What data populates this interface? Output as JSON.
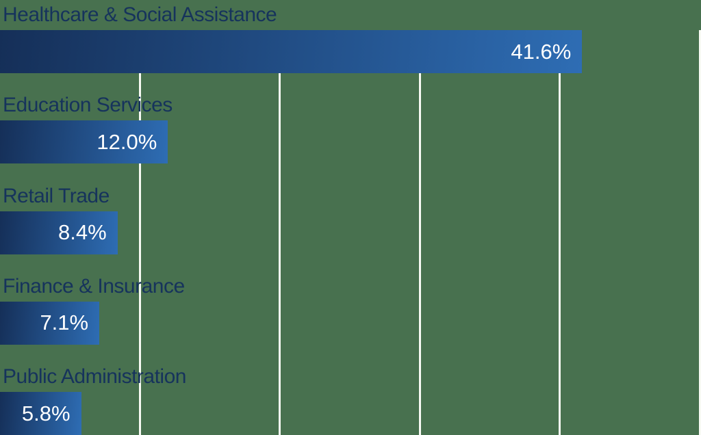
{
  "chart_data": {
    "type": "bar",
    "orientation": "horizontal",
    "title": "",
    "xlabel": "",
    "ylabel": "",
    "categories": [
      "Healthcare & Social Assistance",
      "Education Services",
      "Retail Trade",
      "Finance & Insurance",
      "Public Administration"
    ],
    "values": [
      41.6,
      12.0,
      8.4,
      7.1,
      5.8
    ],
    "value_labels": [
      "41.6%",
      "12.0%",
      "8.4%",
      "7.1%",
      "5.8%"
    ],
    "unit": "%",
    "xlim": [
      0,
      50
    ],
    "gridlines_pct": [
      10,
      20,
      30,
      40,
      50
    ],
    "grid": true,
    "legend": false,
    "colors": {
      "background": "#48714F",
      "bar_gradient_start": "#152F58",
      "bar_gradient_end": "#2E6DB4",
      "category_label": "#16335C",
      "value_label": "#FFFFFF",
      "gridline": "#F7FAF3"
    }
  }
}
